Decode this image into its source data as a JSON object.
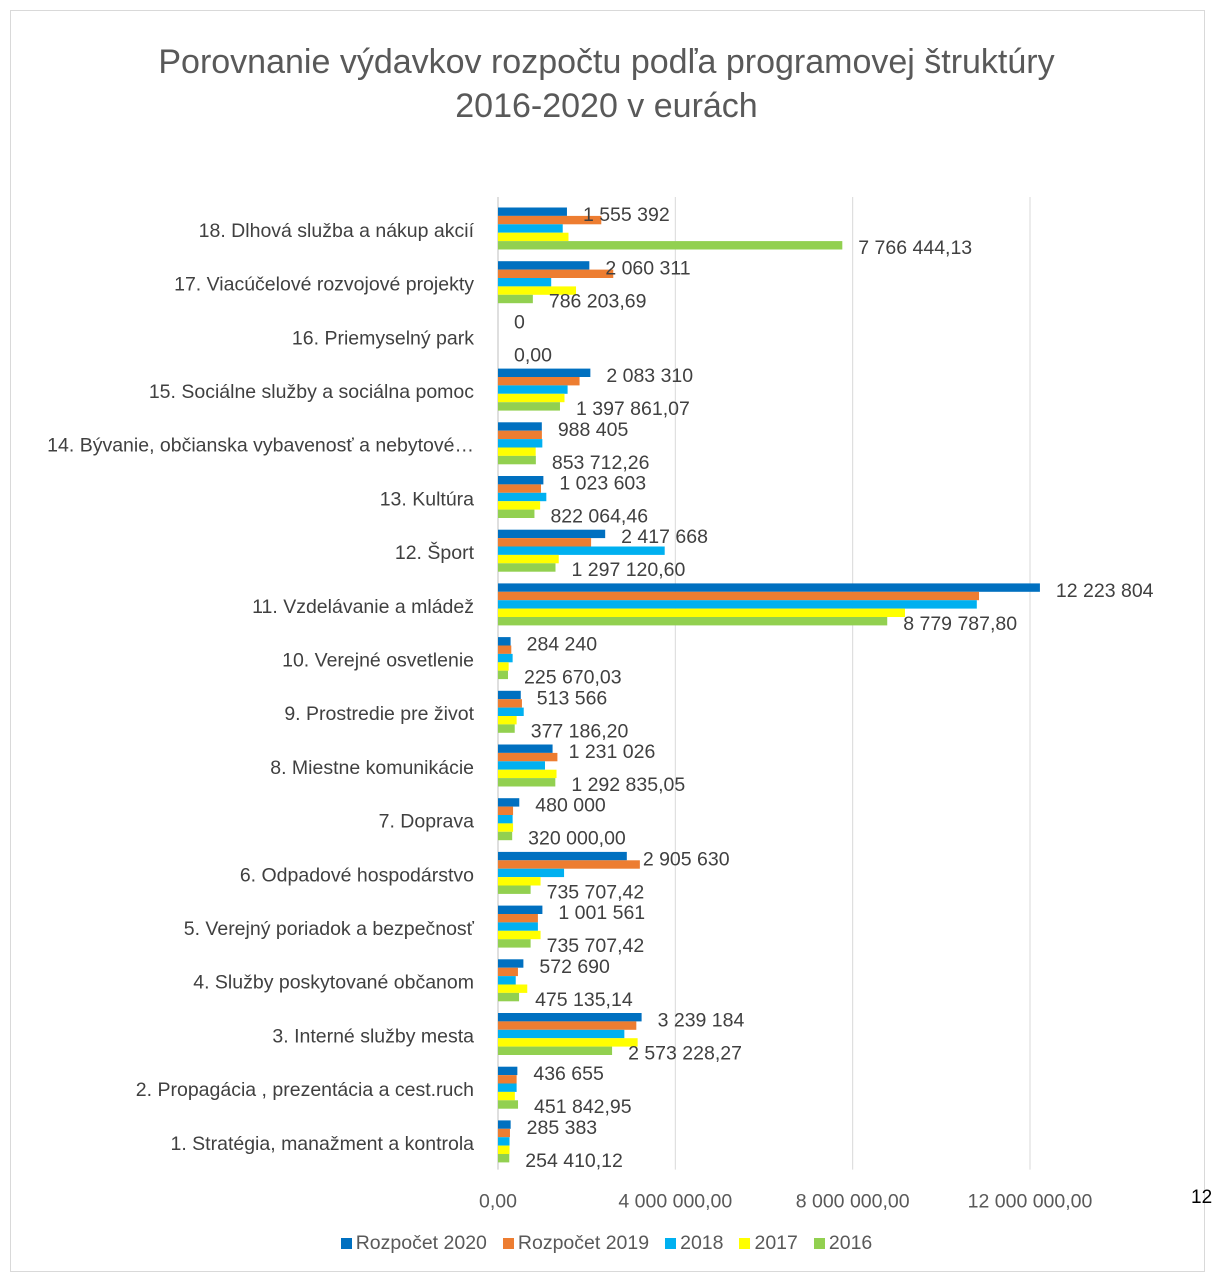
{
  "chart_data": {
    "type": "bar",
    "orientation": "horizontal",
    "title_line1": "Porovnanie výdavkov rozpočtu podľa programovej štruktúry",
    "title_line2": "2016-2020 v eurách",
    "xlim": [
      0,
      12000000
    ],
    "grid": true,
    "legend_position": "bottom",
    "x_ticks": [
      "0,00",
      "4 000 000,00",
      "8 000 000,00",
      "12 000 000,00"
    ],
    "categories": [
      "18. Dlhová služba a nákup akcií",
      "17. Viacúčelové rozvojové projekty",
      "16. Priemyselný park",
      "15. Sociálne služby a sociálna pomoc",
      "14. Bývanie, občianska vybavenosť a nebytové…",
      "13. Kultúra",
      "12. Šport",
      "11. Vzdelávanie a mládež",
      "10. Verejné osvetlenie",
      "9. Prostredie pre život",
      "8. Miestne komunikácie",
      "7. Doprava",
      "6. Odpadové hospodárstvo",
      "5. Verejný poriadok a bezpečnosť",
      "4. Služby poskytované  občanom",
      "3. Interné služby mesta",
      "2. Propagácia , prezentácia a cest.ruch",
      "1. Stratégia, manažment a kontrola"
    ],
    "series": [
      {
        "name": "Rozpočet 2020",
        "color": "#0070c0",
        "values": [
          1555392,
          2060311,
          0,
          2083310,
          988405,
          1023603,
          2417668,
          12223804,
          284240,
          513566,
          1231026,
          480000,
          2905630,
          1001561,
          572690,
          3239184,
          436655,
          285383
        ]
      },
      {
        "name": "Rozpočet 2019",
        "color": "#ed7d31",
        "values": [
          2330000,
          2600000,
          0,
          1840000,
          990000,
          970000,
          2100000,
          10850000,
          300000,
          540000,
          1340000,
          340000,
          3200000,
          900000,
          450000,
          3120000,
          420000,
          270000
        ]
      },
      {
        "name": "2018",
        "color": "#00b0f0",
        "values": [
          1460000,
          1200000,
          0,
          1570000,
          1000000,
          1090000,
          3760000,
          10800000,
          330000,
          580000,
          1060000,
          330000,
          1490000,
          900000,
          400000,
          2850000,
          420000,
          260000
        ]
      },
      {
        "name": "2017",
        "color": "#ffff00",
        "values": [
          1590000,
          1760000,
          0,
          1500000,
          850000,
          950000,
          1370000,
          9180000,
          240000,
          420000,
          1320000,
          340000,
          960000,
          960000,
          660000,
          3150000,
          380000,
          260000
        ]
      },
      {
        "name": "2016",
        "color": "#92d050",
        "values": [
          7766444.13,
          786203.69,
          0.0,
          1397861.07,
          853712.26,
          822064.46,
          1297120.6,
          8779787.8,
          225670.03,
          377186.2,
          1292835.05,
          320000.0,
          735707.42,
          735707.42,
          475135.14,
          2573228.27,
          451842.95,
          254410.12
        ]
      }
    ],
    "labels_2020": [
      "1 555 392",
      "2 060 311",
      "0",
      "2 083 310",
      "988 405",
      "1 023 603",
      "2 417 668",
      "12 223 804",
      "284 240",
      "513 566",
      "1 231 026",
      "480 000",
      "2 905 630",
      "1 001 561",
      "572 690",
      "3 239 184",
      "436 655",
      "285 383"
    ],
    "labels_2016": [
      "7 766 444,13",
      "786 203,69",
      "0,00",
      "1 397 861,07",
      "853 712,26",
      "822 064,46",
      "1 297 120,60",
      "8 779 787,80",
      "225 670,03",
      "377 186,20",
      "1 292 835,05",
      "320 000,00",
      "735 707,42",
      "735 707,42",
      "475 135,14",
      "2 573 228,27",
      "451 842,95",
      "254 410,12"
    ]
  },
  "page_number": "12"
}
